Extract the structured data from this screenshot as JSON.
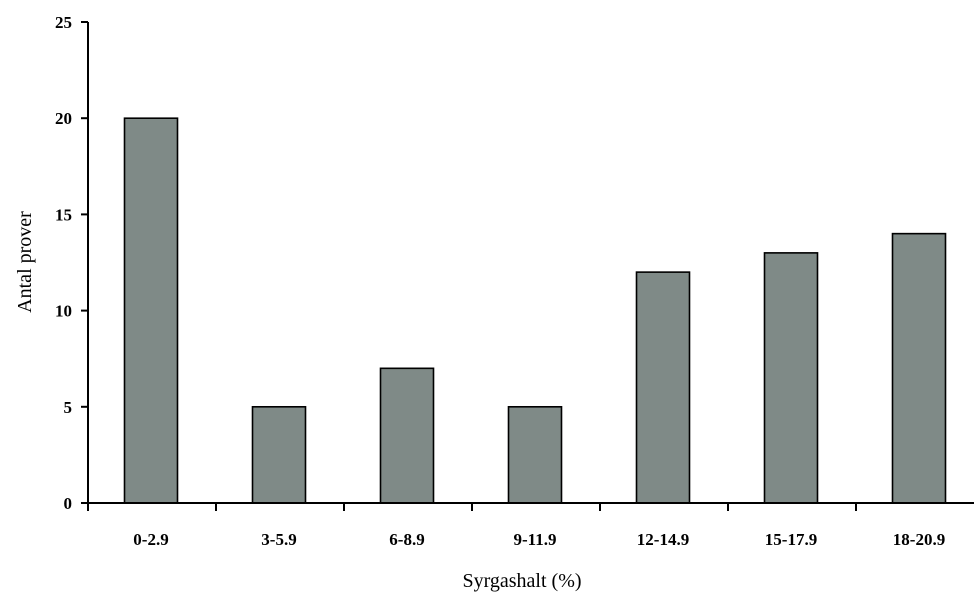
{
  "chart_data": {
    "type": "bar",
    "title": "",
    "xlabel": "Syrgashalt (%)",
    "ylabel": "Antal prover",
    "categories": [
      "0-2.9",
      "3-5.9",
      "6-8.9",
      "9-11.9",
      "12-14.9",
      "15-17.9",
      "18-20.9"
    ],
    "values": [
      20,
      5,
      7,
      5,
      12,
      13,
      14
    ],
    "ylim": [
      0,
      25
    ],
    "yticks": [
      "0",
      "5",
      "10",
      "15",
      "20",
      "25"
    ],
    "grid": false,
    "legend": "none",
    "bar_color": "#7f8a87"
  }
}
